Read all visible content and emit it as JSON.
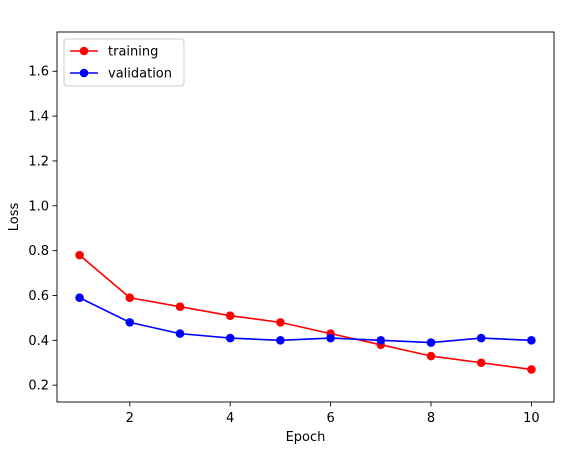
{
  "chart_data": {
    "type": "line",
    "title": "",
    "xlabel": "Epoch",
    "ylabel": "Loss",
    "x": [
      1,
      2,
      3,
      4,
      5,
      6,
      7,
      8,
      9,
      10
    ],
    "xlim": [
      0.55,
      10.45
    ],
    "ylim": [
      0.125,
      1.775
    ],
    "xticks": [
      2,
      4,
      6,
      8,
      10
    ],
    "yticks": [
      0.2,
      0.4,
      0.6,
      0.8,
      1.0,
      1.2,
      1.4,
      1.6
    ],
    "xtick_labels": [
      "2",
      "4",
      "6",
      "8",
      "10"
    ],
    "ytick_labels": [
      "0.2",
      "0.4",
      "0.6",
      "0.8",
      "1.0",
      "1.2",
      "1.4",
      "1.6"
    ],
    "grid": false,
    "legend_position": "upper-left",
    "series": [
      {
        "name": "training",
        "color": "#ff0000",
        "marker": "circle",
        "values": [
          0.78,
          0.59,
          0.55,
          0.51,
          0.48,
          0.43,
          0.38,
          0.33,
          0.3,
          0.27
        ]
      },
      {
        "name": "validation",
        "color": "#0000ff",
        "marker": "circle",
        "values": [
          0.59,
          0.48,
          0.43,
          0.41,
          0.4,
          0.41,
          0.4,
          0.39,
          0.41,
          0.4
        ]
      }
    ]
  }
}
